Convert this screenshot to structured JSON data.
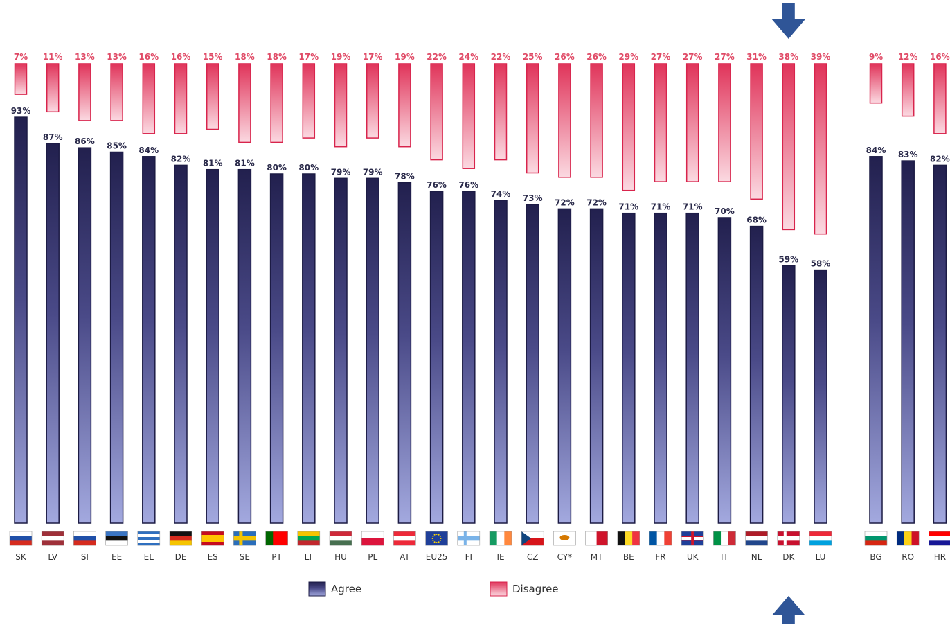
{
  "chart_data": {
    "type": "bar",
    "groups": [
      {
        "categories": [
          "SK",
          "LV",
          "SI",
          "EE",
          "EL",
          "DE",
          "ES",
          "SE",
          "PT",
          "LT",
          "HU",
          "PL",
          "AT",
          "EU25",
          "FI",
          "IE",
          "CZ",
          "CY*",
          "MT",
          "BE",
          "FR",
          "UK",
          "IT",
          "NL",
          "DK",
          "LU"
        ],
        "series": [
          {
            "name": "Agree",
            "values": [
              93,
              87,
              86,
              85,
              84,
              82,
              81,
              81,
              80,
              80,
              79,
              79,
              78,
              76,
              76,
              74,
              73,
              72,
              72,
              71,
              71,
              71,
              70,
              68,
              59,
              58
            ]
          },
          {
            "name": "Disagree",
            "values": [
              7,
              11,
              13,
              13,
              16,
              16,
              15,
              18,
              18,
              17,
              19,
              17,
              19,
              22,
              24,
              22,
              25,
              26,
              26,
              29,
              27,
              27,
              27,
              31,
              38,
              39
            ]
          }
        ]
      },
      {
        "categories": [
          "BG",
          "RO",
          "HR"
        ],
        "series": [
          {
            "name": "Agree",
            "values": [
              84,
              83,
              82
            ]
          },
          {
            "name": "Disagree",
            "values": [
              9,
              12,
              16
            ]
          }
        ]
      }
    ],
    "highlighted": [
      "DK"
    ],
    "legend": [
      "Agree",
      "Disagree"
    ],
    "legend_position": "bottom",
    "colors": {
      "agree": "#2b2a5e",
      "agree_light": "#9ea4dc",
      "disagree": "#e23a5c",
      "disagree_light": "#fbd6df",
      "arrow": "#2f5597"
    }
  }
}
